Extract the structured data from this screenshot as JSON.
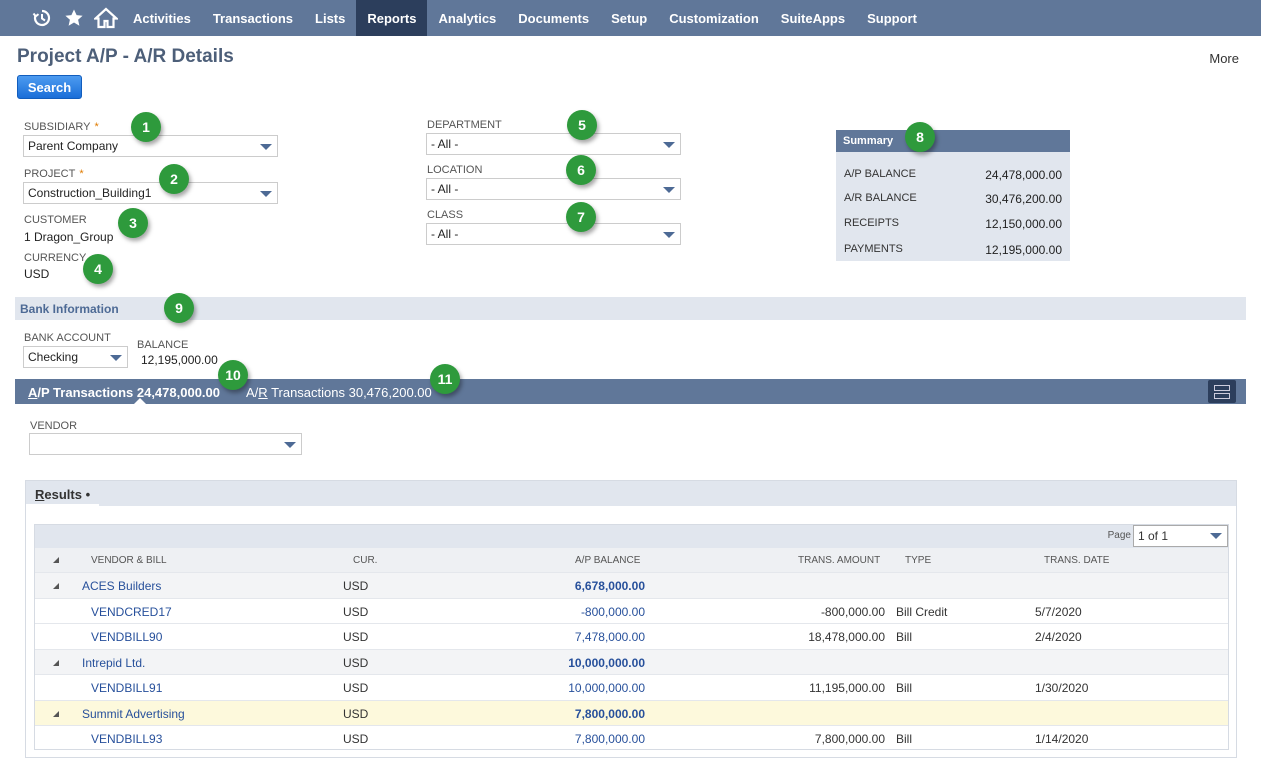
{
  "nav": {
    "items": [
      "Activities",
      "Transactions",
      "Lists",
      "Reports",
      "Analytics",
      "Documents",
      "Setup",
      "Customization",
      "SuiteApps",
      "Support"
    ],
    "active": "Reports"
  },
  "page": {
    "title": "Project A/P - A/R Details",
    "more": "More",
    "search_label": "Search"
  },
  "filters": {
    "subsidiary": {
      "label": "SUBSIDIARY",
      "required": "*",
      "value": "Parent Company"
    },
    "project": {
      "label": "PROJECT",
      "required": "*",
      "value": "Construction_Building1"
    },
    "customer": {
      "label": "CUSTOMER",
      "value": "1 Dragon_Group"
    },
    "currency": {
      "label": "CURRENCY",
      "value": "USD"
    },
    "department": {
      "label": "DEPARTMENT",
      "value": "- All -"
    },
    "location": {
      "label": "LOCATION",
      "value": "- All -"
    },
    "class": {
      "label": "CLASS",
      "value": "- All -"
    }
  },
  "summary": {
    "title": "Summary",
    "rows": [
      {
        "label": "A/P BALANCE",
        "value": "24,478,000.00"
      },
      {
        "label": "A/R BALANCE",
        "value": "30,476,200.00"
      },
      {
        "label": "RECEIPTS",
        "value": "12,150,000.00"
      },
      {
        "label": "PAYMENTS",
        "value": "12,195,000.00"
      }
    ]
  },
  "bank": {
    "section_title": "Bank Information",
    "account_label": "BANK ACCOUNT",
    "account_value": "Checking",
    "balance_label": "BALANCE",
    "balance_value": "12,195,000.00"
  },
  "tabs": {
    "ap": {
      "prefix": "A",
      "rest": "/P Transactions 24,478,000.00"
    },
    "ar": {
      "prefix": "A/",
      "ul": "R",
      "rest": " Transactions 30,476,200.00"
    }
  },
  "vendor_filter": {
    "label": "VENDOR",
    "value": ""
  },
  "results": {
    "tab_ul": "R",
    "tab_rest": "esults",
    "tab_dot": "•",
    "page_label": "Page",
    "page_value": "1 of 1",
    "columns": [
      "VENDOR & BILL",
      "CUR.",
      "A/P BALANCE",
      "TRANS. AMOUNT",
      "TYPE",
      "TRANS. DATE"
    ],
    "rows": [
      {
        "group": true,
        "name": "ACES Builders",
        "cur": "USD",
        "balance": "6,678,000.00",
        "amount": "",
        "type": "",
        "date": ""
      },
      {
        "group": false,
        "name": "VENDCRED17",
        "cur": "USD",
        "balance": "-800,000.00",
        "amount": "-800,000.00",
        "type": "Bill Credit",
        "date": "5/7/2020"
      },
      {
        "group": false,
        "name": "VENDBILL90",
        "cur": "USD",
        "balance": "7,478,000.00",
        "amount": "18,478,000.00",
        "type": "Bill",
        "date": "2/4/2020"
      },
      {
        "group": true,
        "name": "Intrepid Ltd.",
        "cur": "USD",
        "balance": "10,000,000.00",
        "amount": "",
        "type": "",
        "date": ""
      },
      {
        "group": false,
        "name": "VENDBILL91",
        "cur": "USD",
        "balance": "10,000,000.00",
        "amount": "11,195,000.00",
        "type": "Bill",
        "date": "1/30/2020"
      },
      {
        "group": true,
        "highlight": true,
        "name": "Summit Advertising",
        "cur": "USD",
        "balance": "7,800,000.00",
        "amount": "",
        "type": "",
        "date": ""
      },
      {
        "group": false,
        "name": "VENDBILL93",
        "cur": "USD",
        "balance": "7,800,000.00",
        "amount": "7,800,000.00",
        "type": "Bill",
        "date": "1/14/2020"
      }
    ]
  },
  "badges": [
    "1",
    "2",
    "3",
    "4",
    "5",
    "6",
    "7",
    "8",
    "9",
    "10",
    "11"
  ]
}
